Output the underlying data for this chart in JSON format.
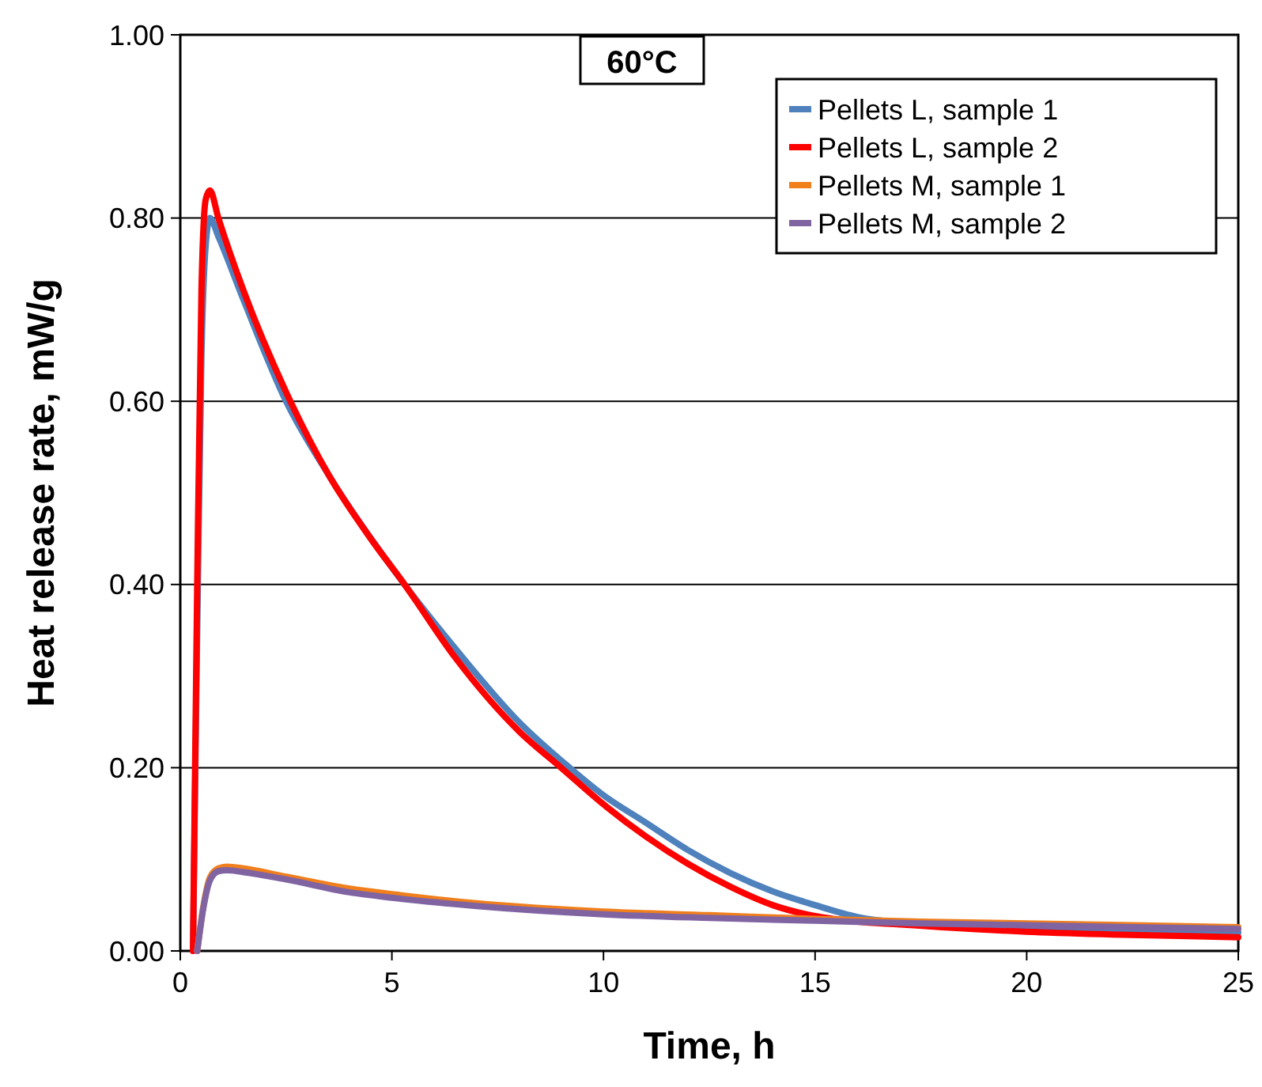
{
  "chart_data": {
    "type": "line",
    "title": "60°C",
    "xlabel": "Time, h",
    "ylabel": "Heat release rate, mW/g",
    "xlim": [
      0,
      25
    ],
    "ylim": [
      0,
      1
    ],
    "xticks": [
      0,
      5,
      10,
      15,
      20,
      25
    ],
    "yticks": [
      {
        "value": 0,
        "label": "0.00"
      },
      {
        "value": 0.2,
        "label": "0.20"
      },
      {
        "value": 0.4,
        "label": "0.40"
      },
      {
        "value": 0.6,
        "label": "0.60"
      },
      {
        "value": 0.8,
        "label": "0.80"
      },
      {
        "value": 1,
        "label": "1.00"
      }
    ],
    "grid": "y",
    "legend": "top right",
    "marker": "none",
    "line_style": "solid",
    "series": [
      {
        "name": "Pellets L, sample 1",
        "color": "#4f81bd",
        "x": [
          0.3,
          0.4,
          0.5,
          0.6,
          0.7,
          0.9,
          1.5,
          2.5,
          3.5,
          5.3,
          6.5,
          8,
          9.2,
          10,
          11,
          12,
          13,
          14,
          15,
          16,
          17,
          18,
          20,
          22,
          25
        ],
        "values": [
          0,
          0.35,
          0.65,
          0.77,
          0.8,
          0.78,
          0.71,
          0.6,
          0.52,
          0.4,
          0.33,
          0.25,
          0.2,
          0.17,
          0.14,
          0.11,
          0.085,
          0.065,
          0.05,
          0.037,
          0.031,
          0.029,
          0.026,
          0.024,
          0.02
        ]
      },
      {
        "name": "Pellets L, sample 2",
        "color": "#ff0000",
        "x": [
          0.3,
          0.4,
          0.5,
          0.6,
          0.7,
          0.9,
          1.5,
          2.5,
          3.5,
          4.5,
          5.3,
          6.5,
          8,
          9,
          10,
          11,
          12,
          13,
          14,
          15,
          16,
          17,
          18,
          20,
          22,
          25
        ],
        "values": [
          0,
          0.4,
          0.72,
          0.82,
          0.83,
          0.8,
          0.72,
          0.61,
          0.52,
          0.45,
          0.4,
          0.32,
          0.24,
          0.2,
          0.16,
          0.125,
          0.095,
          0.07,
          0.05,
          0.038,
          0.032,
          0.029,
          0.026,
          0.021,
          0.018,
          0.015
        ]
      },
      {
        "name": "Pellets M, sample 1",
        "color": "#f07f1c",
        "x": [
          0.4,
          0.55,
          0.7,
          0.9,
          1.1,
          1.5,
          2.5,
          4,
          5,
          7,
          10,
          12.5,
          15,
          17.5,
          20,
          22.5,
          25
        ],
        "values": [
          0,
          0.05,
          0.08,
          0.09,
          0.092,
          0.09,
          0.081,
          0.068,
          0.062,
          0.052,
          0.043,
          0.039,
          0.035,
          0.032,
          0.03,
          0.028,
          0.026
        ]
      },
      {
        "name": "Pellets M, sample 2",
        "color": "#8064a2",
        "x": [
          0.4,
          0.55,
          0.7,
          0.9,
          1.1,
          1.5,
          2.5,
          4,
          5,
          7,
          10,
          12.5,
          15,
          17.5,
          20,
          22.5,
          25
        ],
        "values": [
          0,
          0.048,
          0.077,
          0.087,
          0.088,
          0.086,
          0.078,
          0.064,
          0.058,
          0.049,
          0.04,
          0.036,
          0.033,
          0.03,
          0.028,
          0.026,
          0.024
        ]
      }
    ]
  }
}
